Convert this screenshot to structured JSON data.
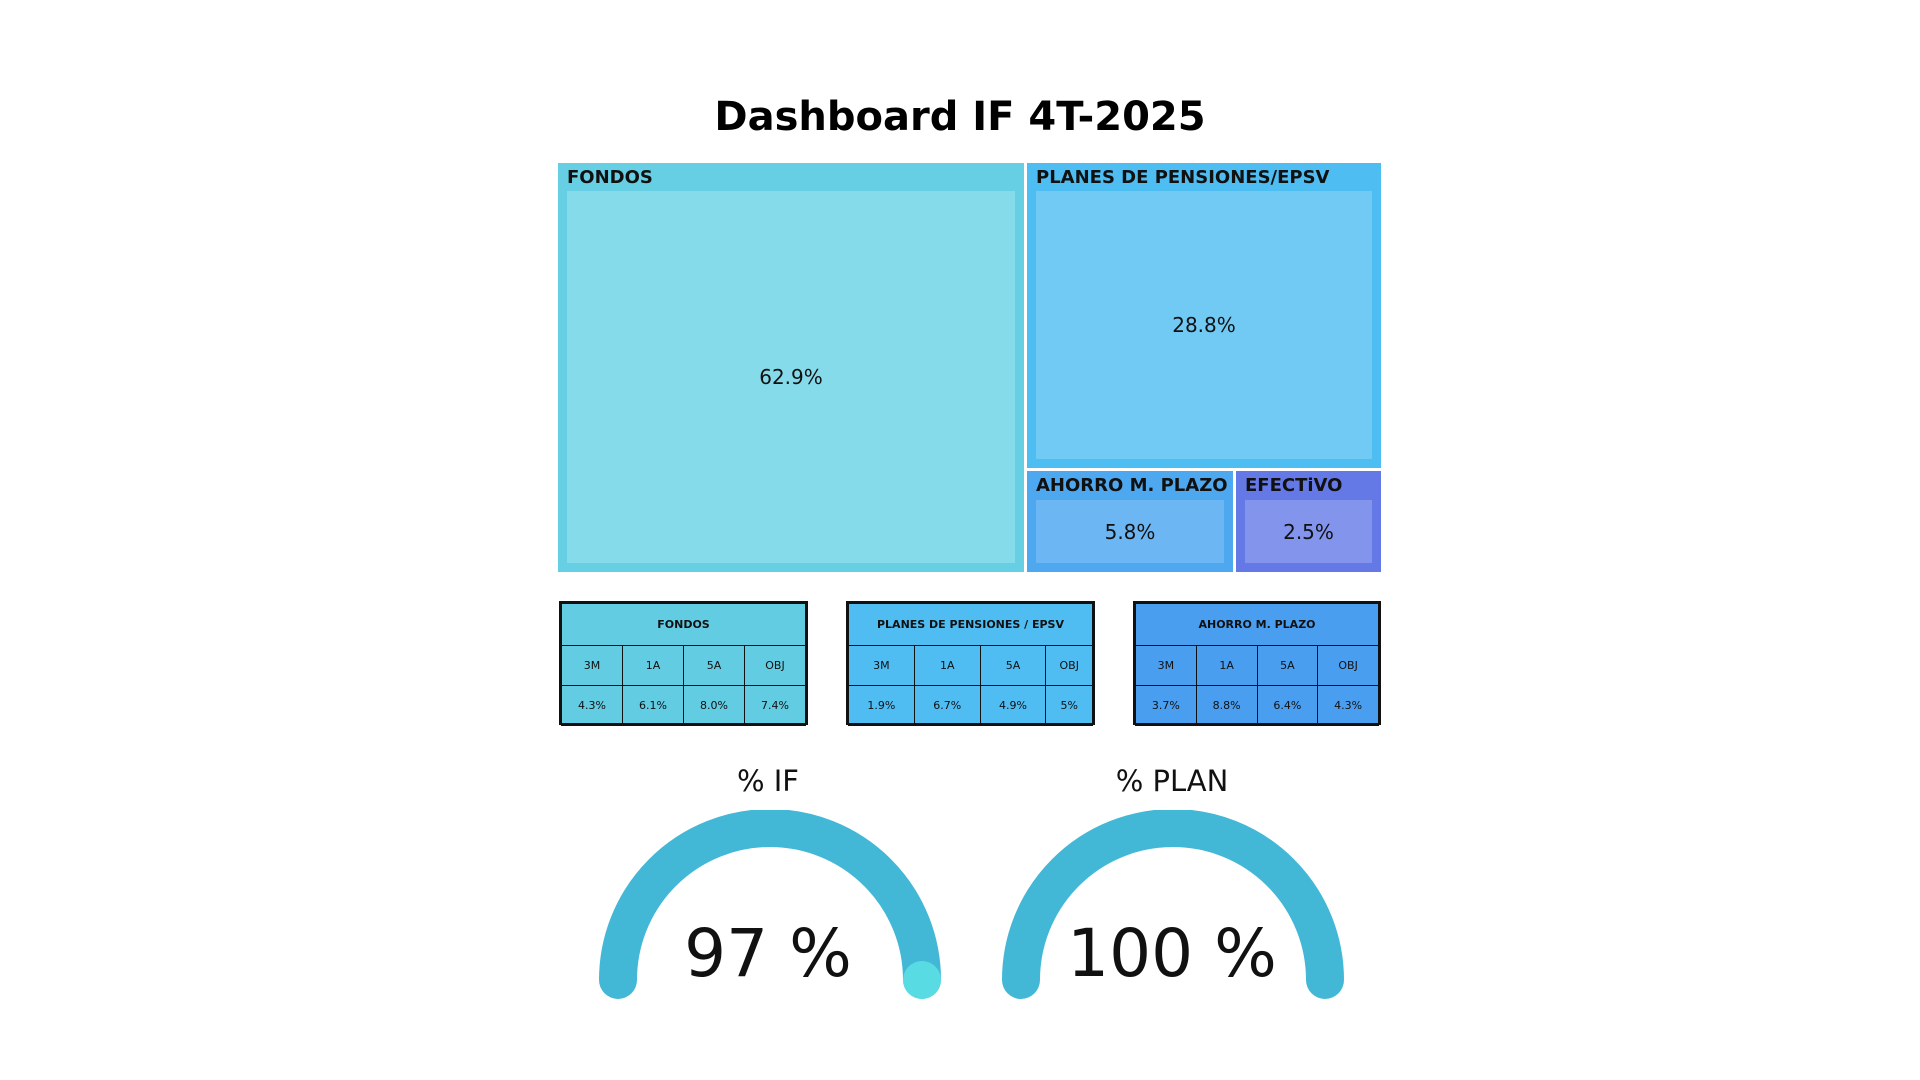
{
  "title": "Dashboard IF 4T-2025",
  "treemap": {
    "fondos": {
      "label": "FONDOS",
      "value": "62.9%",
      "color": "#66cfe3"
    },
    "planes": {
      "label": "PLANES DE PENSIONES/EPSV",
      "value": "28.8%",
      "color": "#4dbdf2"
    },
    "ahorro": {
      "label": "AHORRO M. PLAZO",
      "value": "5.8%",
      "color": "#4ea8f0"
    },
    "efectivo": {
      "label": "EFECTiVO",
      "value": "2.5%",
      "color": "#6579e6"
    }
  },
  "tables": [
    {
      "title": "FONDOS",
      "headers": [
        "3M",
        "1A",
        "5A",
        "OBJ"
      ],
      "values": [
        "4.3%",
        "6.1%",
        "8.0%",
        "7.4%"
      ]
    },
    {
      "title": "PLANES DE PENSIONES / EPSV",
      "headers": [
        "3M",
        "1A",
        "5A",
        "OBJ"
      ],
      "values": [
        "1.9%",
        "6.7%",
        "4.9%",
        "5%"
      ]
    },
    {
      "title": "AHORRO M. PLAZO",
      "headers": [
        "3M",
        "1A",
        "5A",
        "OBJ"
      ],
      "values": [
        "3.7%",
        "8.8%",
        "6.4%",
        "4.3%"
      ]
    }
  ],
  "gauges": [
    {
      "label": "% IF",
      "value_text": "97 %",
      "fraction": 0.97,
      "color": "#42b8d6",
      "overflow_color": "#5de0e6"
    },
    {
      "label": "% PLAN",
      "value_text": "100 %",
      "fraction": 1.0,
      "color": "#42b8d6"
    }
  ]
}
